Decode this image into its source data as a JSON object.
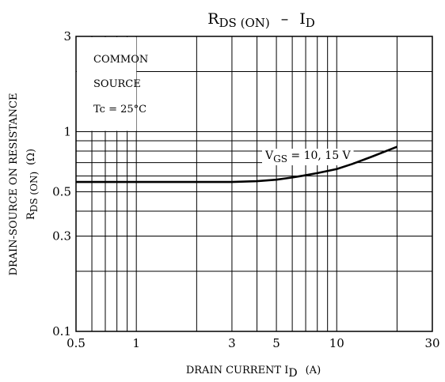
{
  "chart_data": {
    "type": "line",
    "title": {
      "main": "R",
      "main_sub": "DS (ON)",
      "dash": "–",
      "var": "I",
      "var_sub": "D"
    },
    "xlabel": {
      "main": "DRAIN CURRENT  I",
      "sub": "D",
      "unit": "(A)"
    },
    "ylabel": {
      "line1": "DRAIN-SOURCE ON RESISTANCE",
      "line2": "R",
      "line2_sub": "DS (ON)",
      "line2_unit": "(Ω)"
    },
    "x_scale": "log",
    "y_scale": "log",
    "xlim": [
      0.5,
      30
    ],
    "ylim": [
      0.1,
      3
    ],
    "grid": true,
    "x_gridlines": [
      0.6,
      0.7,
      0.8,
      0.9,
      1,
      2,
      3,
      4,
      5,
      6,
      7,
      8,
      9,
      10,
      20
    ],
    "y_gridlines": [
      0.2,
      0.3,
      0.4,
      0.5,
      0.6,
      0.7,
      0.8,
      0.9,
      1,
      2
    ],
    "x_ticks": [
      {
        "value": 0.5,
        "label": "0.5"
      },
      {
        "value": 1,
        "label": "1"
      },
      {
        "value": 3,
        "label": "3"
      },
      {
        "value": 5,
        "label": "5"
      },
      {
        "value": 10,
        "label": "10"
      },
      {
        "value": 30,
        "label": "30"
      }
    ],
    "y_ticks": [
      {
        "value": 0.1,
        "label": "0.1"
      },
      {
        "value": 0.3,
        "label": "0.3"
      },
      {
        "value": 0.5,
        "label": "0.5"
      },
      {
        "value": 1,
        "label": "1"
      },
      {
        "value": 3,
        "label": "3"
      }
    ],
    "annotation": {
      "line1": "COMMON",
      "line2": "SOURCE",
      "line3": "Tc = 25°C"
    },
    "series": [
      {
        "label_main": "V",
        "label_sub": "GS",
        "label_rest": " = 10, 15 V",
        "x": [
          0.5,
          1,
          2,
          3,
          4,
          5,
          6,
          7,
          8,
          10,
          12,
          15,
          20
        ],
        "y": [
          0.56,
          0.56,
          0.56,
          0.56,
          0.565,
          0.575,
          0.59,
          0.605,
          0.62,
          0.65,
          0.69,
          0.75,
          0.84
        ]
      }
    ]
  }
}
